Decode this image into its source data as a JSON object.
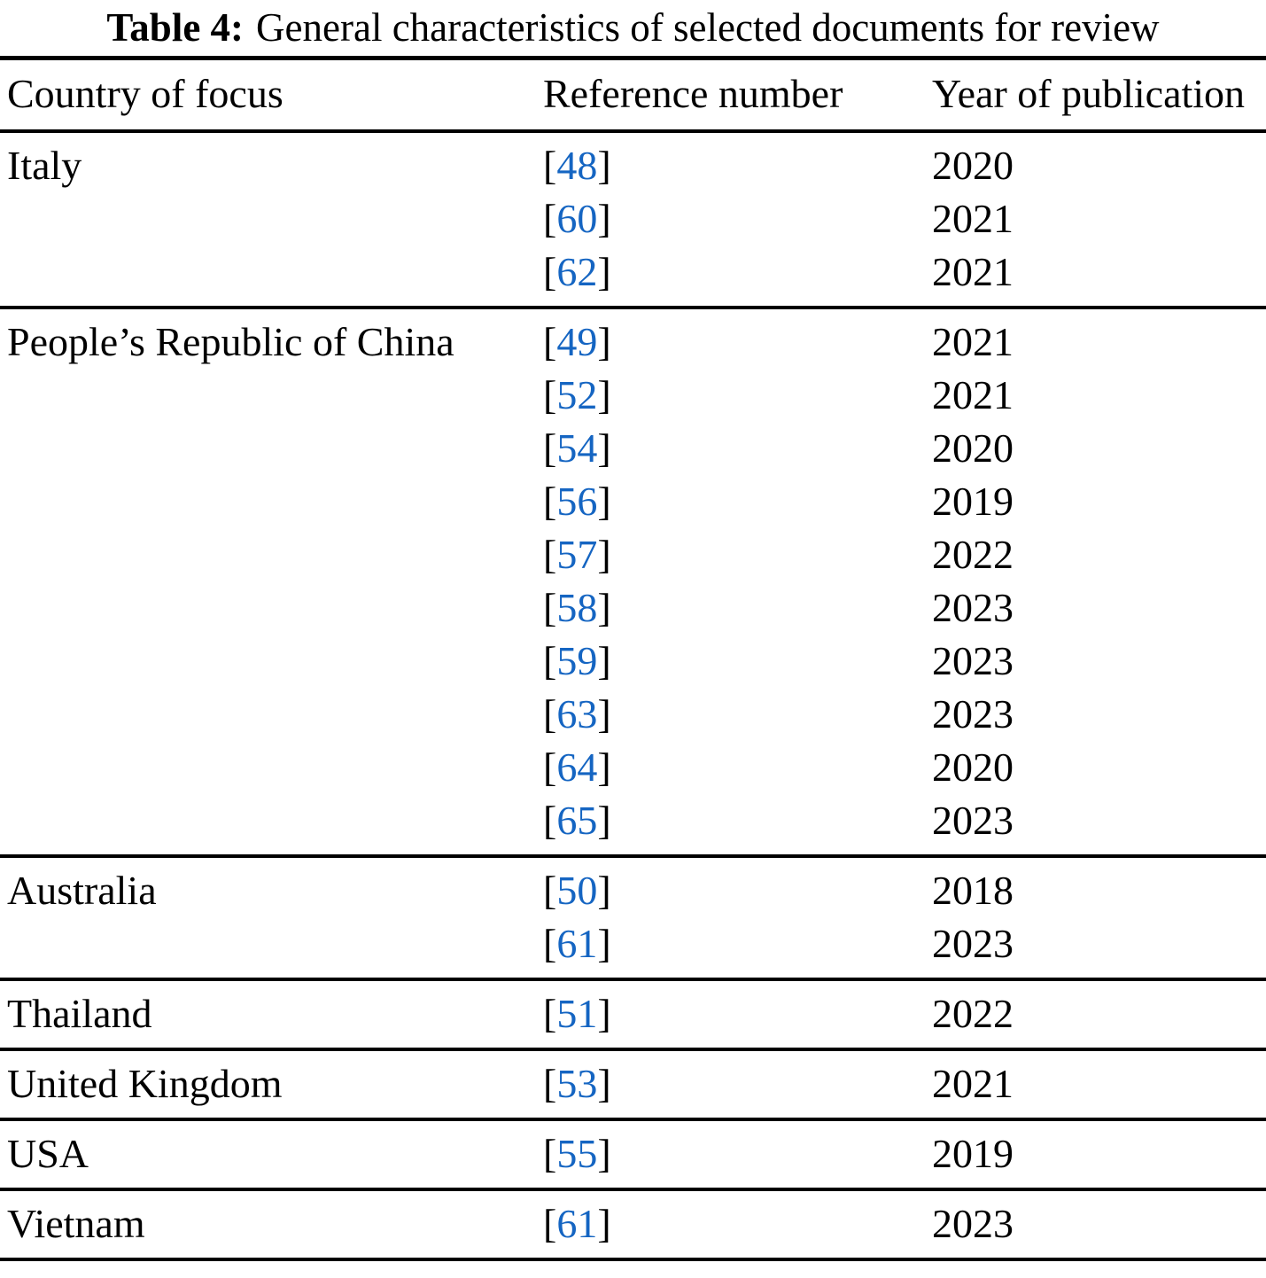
{
  "title": {
    "label": "Table 4:",
    "text": "General characteristics of selected documents for review"
  },
  "columns": [
    "Country of focus",
    "Reference number",
    "Year of publication"
  ],
  "colors": {
    "citation_link": "#1565c2",
    "text": "#000000",
    "rule": "#000000"
  },
  "groups": [
    {
      "country": "Italy",
      "entries": [
        {
          "ref": "48",
          "year": "2020"
        },
        {
          "ref": "60",
          "year": "2021"
        },
        {
          "ref": "62",
          "year": "2021"
        }
      ]
    },
    {
      "country": "People’s Republic of China",
      "entries": [
        {
          "ref": "49",
          "year": "2021"
        },
        {
          "ref": "52",
          "year": "2021"
        },
        {
          "ref": "54",
          "year": "2020"
        },
        {
          "ref": "56",
          "year": "2019"
        },
        {
          "ref": "57",
          "year": "2022"
        },
        {
          "ref": "58",
          "year": "2023"
        },
        {
          "ref": "59",
          "year": "2023"
        },
        {
          "ref": "63",
          "year": "2023"
        },
        {
          "ref": "64",
          "year": "2020"
        },
        {
          "ref": "65",
          "year": "2023"
        }
      ]
    },
    {
      "country": "Australia",
      "entries": [
        {
          "ref": "50",
          "year": "2018"
        },
        {
          "ref": "61",
          "year": "2023"
        }
      ]
    },
    {
      "country": "Thailand",
      "entries": [
        {
          "ref": "51",
          "year": "2022"
        }
      ]
    },
    {
      "country": "United Kingdom",
      "entries": [
        {
          "ref": "53",
          "year": "2021"
        }
      ]
    },
    {
      "country": "USA",
      "entries": [
        {
          "ref": "55",
          "year": "2019"
        }
      ]
    },
    {
      "country": "Vietnam",
      "entries": [
        {
          "ref": "61",
          "year": "2023"
        }
      ]
    }
  ]
}
